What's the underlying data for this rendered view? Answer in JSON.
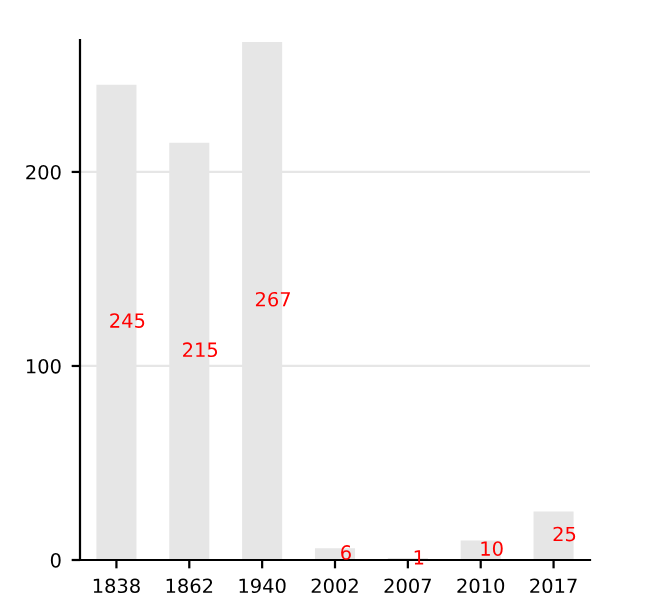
{
  "chart_data": {
    "type": "bar",
    "categories": [
      "1838",
      "1862",
      "1940",
      "2002",
      "2007",
      "2010",
      "2017"
    ],
    "values": [
      245,
      215,
      267,
      6,
      1,
      10,
      25
    ],
    "color": "#e6e6e6",
    "ylim": [
      0,
      268
    ],
    "yticks": [
      0,
      100,
      200
    ],
    "grid": "y",
    "data_labels": true
  }
}
